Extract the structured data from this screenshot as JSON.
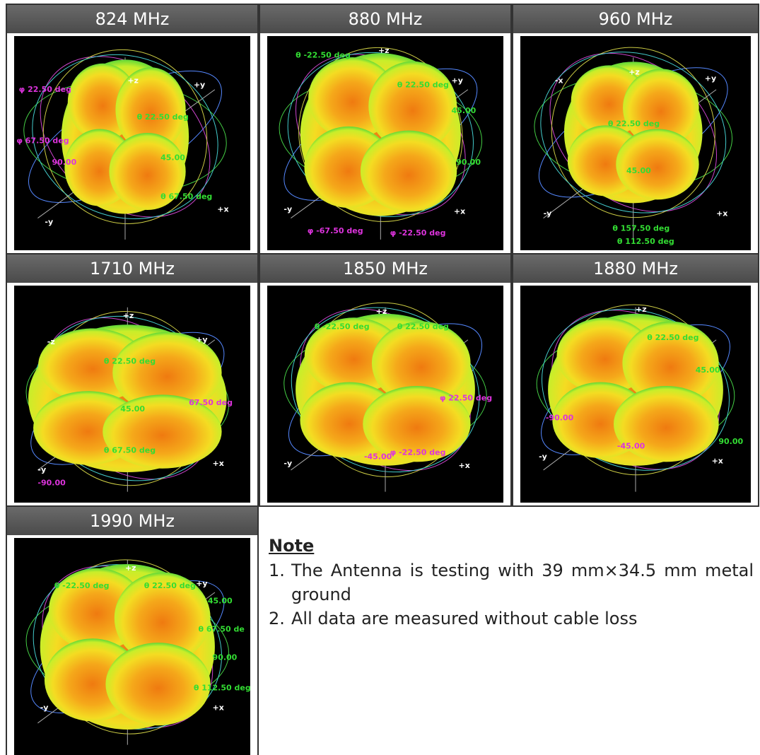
{
  "panels": [
    {
      "title": "824 MHz",
      "labels": [
        "+z",
        "+y",
        "-y",
        "+x",
        "θ 22.50 deg",
        "45.00",
        "θ 67.50 deg",
        "φ 22.50 deg",
        "φ 67.50 deg",
        "90.00"
      ]
    },
    {
      "title": "880 MHz",
      "labels": [
        "+z",
        "+y",
        "-y",
        "+x",
        "θ 22.50 deg",
        "45.00",
        "θ -22.50 deg",
        "90.00",
        "φ -67.50 deg",
        "φ -22.50 deg"
      ]
    },
    {
      "title": "960 MHz",
      "labels": [
        "+z",
        "+y",
        "-x",
        "-y",
        "+x",
        "θ 22.50 deg",
        "45.00",
        "θ 157.50 deg",
        "θ 112.50 deg"
      ]
    },
    {
      "title": "1710 MHz",
      "labels": [
        "+z",
        "+y",
        "-z",
        "-y",
        "+x",
        "θ 22.50 deg",
        "45.00",
        "θ 67.50 deg",
        "67.50 deg",
        "-90.00"
      ]
    },
    {
      "title": "1850 MHz",
      "labels": [
        "+z",
        "-y",
        "+x",
        "θ -22.50 deg",
        "θ 22.50 deg",
        "-45.00",
        "φ -22.50 deg",
        "φ 22.50 deg"
      ]
    },
    {
      "title": "1880 MHz",
      "labels": [
        "+z",
        "-y",
        "+x",
        "θ 22.50 deg",
        "45.00",
        "-90.00",
        "-45.00",
        "90.00"
      ]
    },
    {
      "title": "1990 MHz",
      "labels": [
        "+z",
        "+y",
        "-y",
        "+x",
        "θ -22.50 deg",
        "θ 22.50 deg",
        "45.00",
        "θ 67.50 de",
        "90.00",
        "θ 112.50 deg"
      ]
    }
  ],
  "note": {
    "title": "Note",
    "items": [
      {
        "number": "1.",
        "text": "The Antenna is testing with 39 mm×34.5 mm metal ground"
      },
      {
        "number": "2.",
        "text": "All data are measured without cable loss"
      }
    ]
  }
}
